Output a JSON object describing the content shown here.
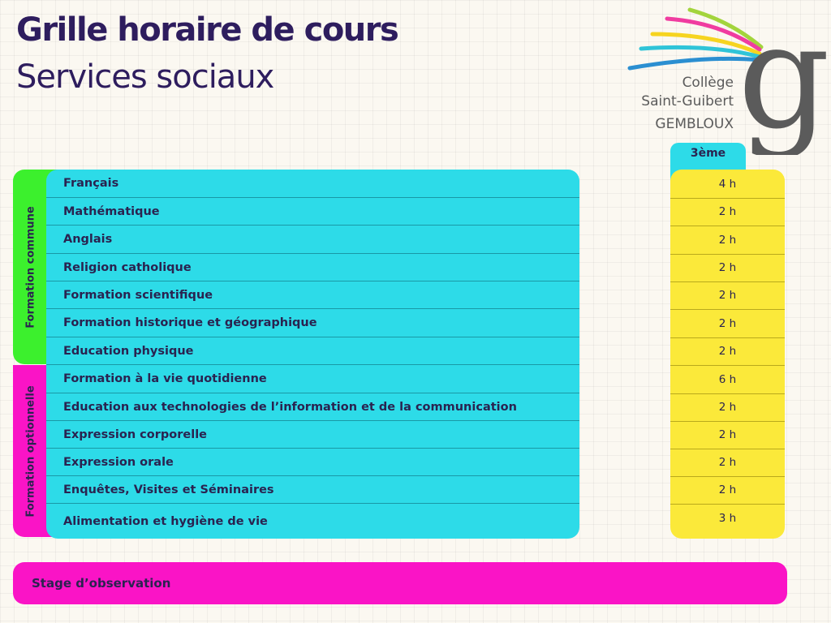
{
  "title": "Grille horaire de cours",
  "subtitle": "Services sociaux",
  "logo": {
    "line1": "Collège",
    "line2": "Saint-Guibert",
    "line3": "GEMBLOUX",
    "glyph": "g",
    "stripe_colors": [
      "#a3d43c",
      "#f03ca0",
      "#f6d420",
      "#2fc4d8",
      "#2b8fd1"
    ]
  },
  "groups": {
    "commune": {
      "label": "Formation commune",
      "color": "#3cf02d"
    },
    "optionnelle": {
      "label": "Formation optionnelle",
      "color": "#fa14c6"
    }
  },
  "column_header": "3ème",
  "rows": [
    {
      "subject": "Français",
      "hours": "4 h"
    },
    {
      "subject": "Mathématique",
      "hours": "2 h"
    },
    {
      "subject": "Anglais",
      "hours": "2 h"
    },
    {
      "subject": "Religion catholique",
      "hours": "2 h"
    },
    {
      "subject": "Formation scientifique",
      "hours": "2 h"
    },
    {
      "subject": "Formation historique et géographique",
      "hours": "2 h"
    },
    {
      "subject": "Education physique",
      "hours": "2 h"
    },
    {
      "subject": "Formation à la vie quotidienne",
      "hours": "6 h"
    },
    {
      "subject": "Education aux technologies de l’information et de la communication",
      "hours": "2 h"
    },
    {
      "subject": "Expression corporelle",
      "hours": "2 h"
    },
    {
      "subject": "Expression orale",
      "hours": "2 h"
    },
    {
      "subject": "Enquêtes, Visites et Séminaires",
      "hours": "2 h"
    },
    {
      "subject": "Alimentation et hygiène de vie",
      "hours": "3 h"
    }
  ],
  "footer": "Stage d’observation",
  "colors": {
    "cyan": "#2ddbe8",
    "yellow": "#fbe93a",
    "green": "#3cf02d",
    "magenta": "#fa14c6",
    "title": "#2e1d5e"
  }
}
